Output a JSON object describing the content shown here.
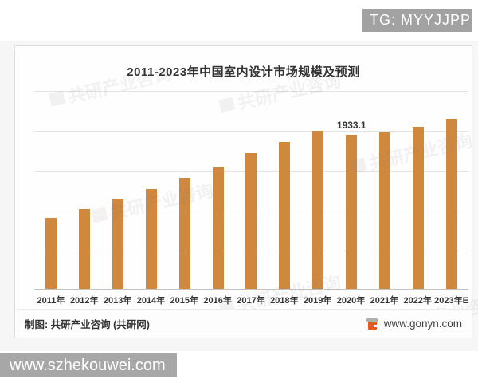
{
  "page": {
    "tg_badge": "TG: MYYJJPP",
    "bottom_watermark": "www.szhekouwei.com"
  },
  "chart": {
    "title": "2011-2023年中国室内设计市场规模及预测",
    "watermark_text": "共研产业咨询",
    "footer": {
      "credit": "制图: 共研产业咨询 (共研网)",
      "site": "www.gonyn.com"
    },
    "colors": {
      "bar": "#d0883f",
      "grid": "#e3e3e3",
      "axis": "#c4c4c4",
      "badge_bg": "#a2a2a2",
      "logo_orange": "#e8571f",
      "logo_gray": "#b0b0b0"
    }
  },
  "chart_data": {
    "type": "bar",
    "title": "2011-2023年中国室内设计市场规模及预测",
    "categories": [
      "2011年",
      "2012年",
      "2013年",
      "2014年",
      "2015年",
      "2016年",
      "2017年",
      "2018年",
      "2019年",
      "2020年",
      "2021年",
      "2022年",
      "2023年E"
    ],
    "values": [
      890,
      1000,
      1130,
      1250,
      1390,
      1530,
      1700,
      1840,
      1980,
      1933.1,
      1960,
      2030,
      2130
    ],
    "data_label": {
      "index": 9,
      "text": "1933.1"
    },
    "ylim": [
      0,
      2500
    ],
    "gridline_step": 500,
    "grid": "horizontal only, no y tick labels",
    "legend": "none",
    "xlabel": "",
    "ylabel": "",
    "bar_color": "#d0883f",
    "note": "only the 2020 bar carries a data label; unlabeled values estimated from gridlines (step 500)"
  }
}
